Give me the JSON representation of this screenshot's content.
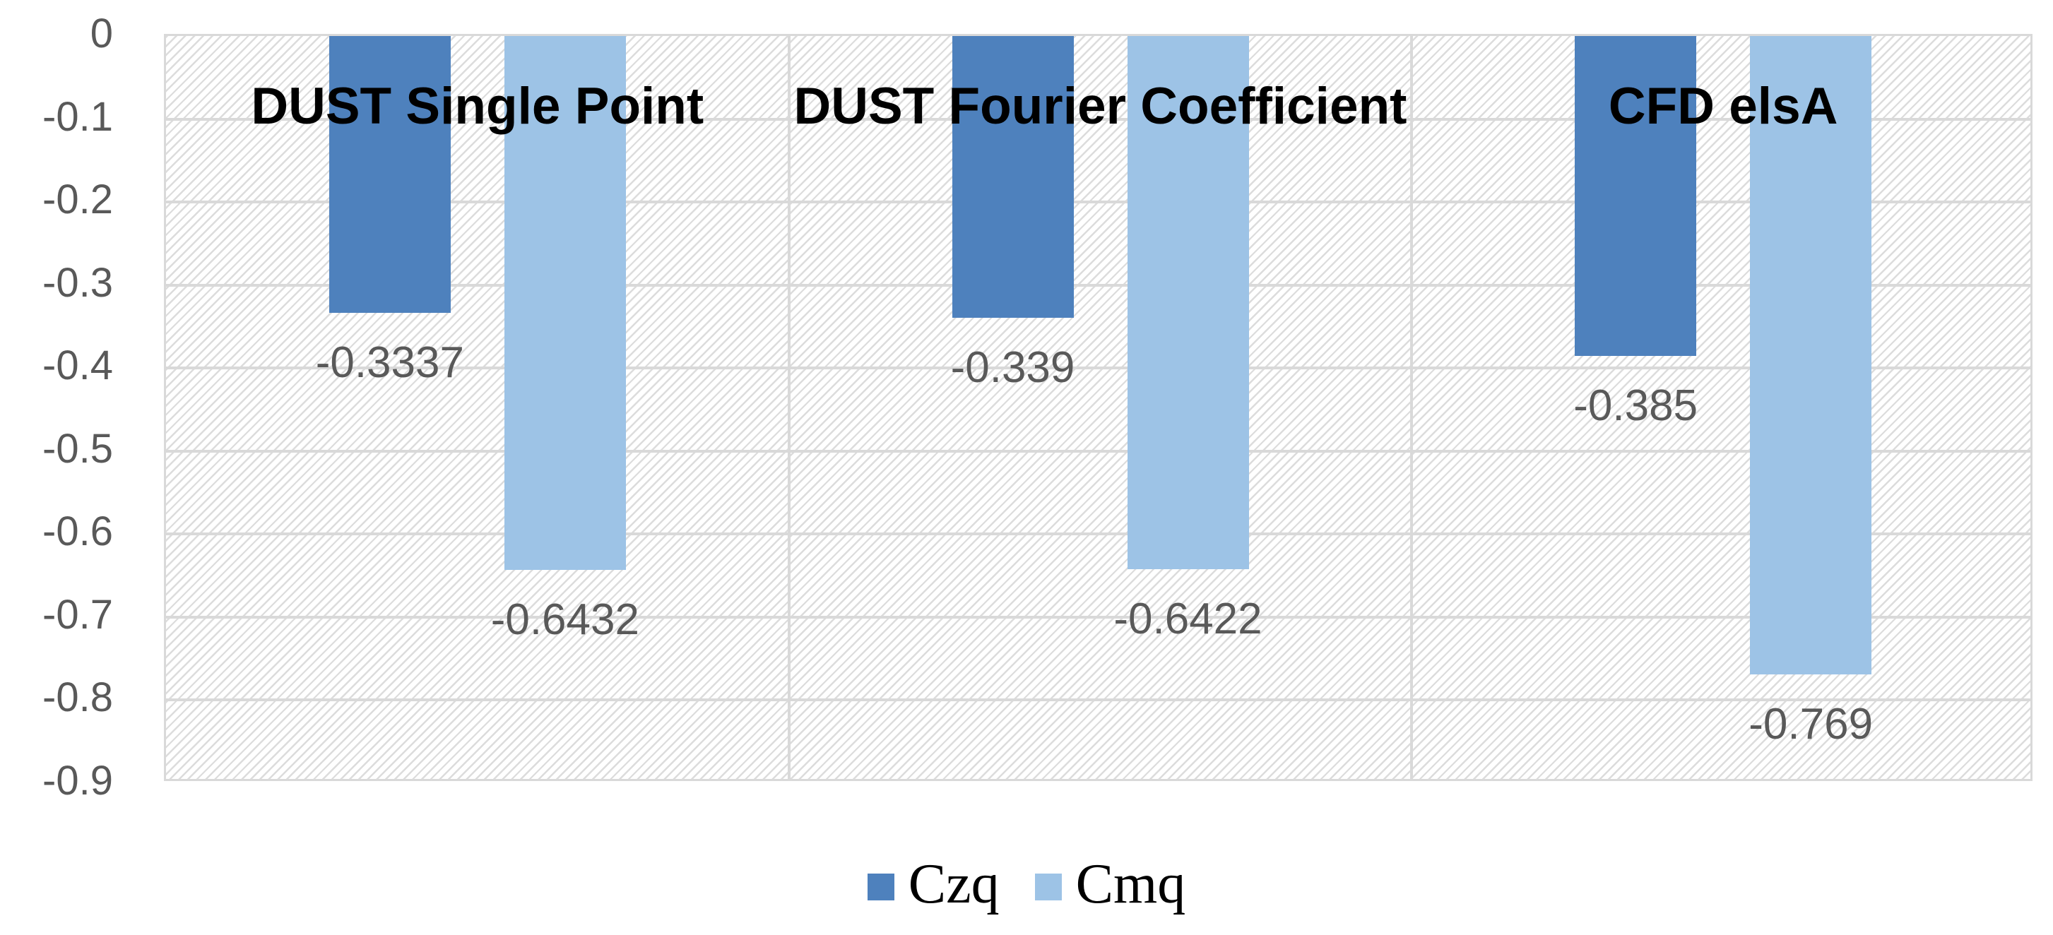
{
  "chart_data": {
    "type": "bar",
    "title": "",
    "xlabel": "",
    "ylabel": "",
    "categories": [
      "DUST Single Point",
      "DUST Fourier Coefficient",
      "CFD elsA"
    ],
    "series": [
      {
        "name": "Czq",
        "color": "#4E81BD",
        "values": [
          -0.3337,
          -0.339,
          -0.385
        ],
        "labels": [
          "-0.3337",
          "-0.339",
          "-0.385"
        ]
      },
      {
        "name": "Cmq",
        "color": "#9DC3E6",
        "values": [
          -0.6432,
          -0.6422,
          -0.769
        ],
        "labels": [
          "-0.6432",
          "-0.6422",
          "-0.769"
        ]
      }
    ],
    "ylim": [
      -0.9,
      0
    ],
    "ytick_labels": [
      "0",
      "-0.1",
      "-0.2",
      "-0.3",
      "-0.4",
      "-0.5",
      "-0.6",
      "-0.7",
      "-0.8",
      "-0.9"
    ],
    "grid": "horizontal major gridlines plus vertical category separators",
    "legend_position": "bottom-center",
    "plot_background": "white with light gray upward-diagonal hatch pattern"
  },
  "legend": {
    "items": [
      {
        "label": "Czq",
        "color": "#4E81BD"
      },
      {
        "label": "Cmq",
        "color": "#9DC3E6"
      }
    ]
  },
  "colors": {
    "czq_bar": "#4E81BD",
    "cmq_bar": "#9DC3E6",
    "gridline": "#D9D9D9",
    "hatch_line": "#DCDCDC",
    "tick_text": "#595959",
    "data_label_text": "#595959",
    "category_label_text": "#000000",
    "legend_text": "#000000",
    "background": "#FFFFFF"
  }
}
